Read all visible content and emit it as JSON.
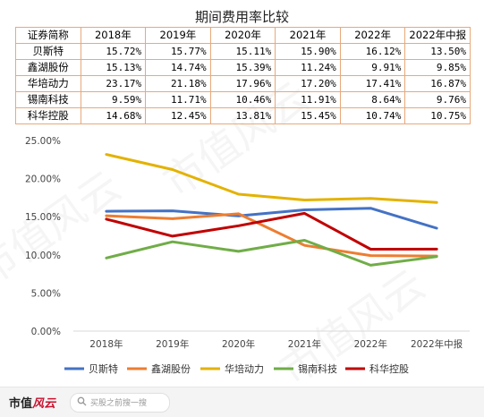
{
  "chart_data": {
    "type": "table_and_line",
    "title": "期间费用率比较",
    "table": {
      "headers": [
        "证券简称",
        "2018年",
        "2019年",
        "2020年",
        "2021年",
        "2022年",
        "2022年中报"
      ],
      "rows": [
        [
          "贝斯特",
          "15.72%",
          "15.77%",
          "15.11%",
          "15.90%",
          "16.12%",
          "13.50%"
        ],
        [
          "鑫湖股份",
          "15.13%",
          "14.74%",
          "15.39%",
          "11.24%",
          "9.91%",
          "9.85%"
        ],
        [
          "华培动力",
          "23.17%",
          "21.18%",
          "17.96%",
          "17.20%",
          "17.41%",
          "16.87%"
        ],
        [
          "锡南科技",
          "9.59%",
          "11.71%",
          "10.46%",
          "11.91%",
          "8.64%",
          "9.76%"
        ],
        [
          "科华控股",
          "14.68%",
          "12.45%",
          "13.81%",
          "15.45%",
          "10.74%",
          "10.75%"
        ]
      ]
    },
    "line_chart": {
      "type": "line",
      "categories": [
        "2018年",
        "2019年",
        "2020年",
        "2021年",
        "2022年",
        "2022年中报"
      ],
      "ylim": [
        0,
        25
      ],
      "ytick_values": [
        0,
        5,
        10,
        15,
        20,
        25
      ],
      "ytick_labels": [
        "0.00%",
        "5.00%",
        "10.00%",
        "15.00%",
        "20.00%",
        "25.00%"
      ],
      "grid": false,
      "legend_position": "bottom",
      "series": [
        {
          "name": "贝斯特",
          "color": "#4472c4",
          "values": [
            15.72,
            15.77,
            15.11,
            15.9,
            16.12,
            13.5
          ]
        },
        {
          "name": "鑫湖股份",
          "color": "#ed7d31",
          "values": [
            15.13,
            14.74,
            15.39,
            11.24,
            9.91,
            9.85
          ]
        },
        {
          "name": "华培动力",
          "color": "#e3b200",
          "values": [
            23.17,
            21.18,
            17.96,
            17.2,
            17.41,
            16.87
          ]
        },
        {
          "name": "锡南科技",
          "color": "#70ad47",
          "values": [
            9.59,
            11.71,
            10.46,
            11.91,
            8.64,
            9.76
          ]
        },
        {
          "name": "科华控股",
          "color": "#c00000",
          "values": [
            14.68,
            12.45,
            13.81,
            15.45,
            10.74,
            10.75
          ]
        }
      ]
    }
  },
  "footer": {
    "logo_main": "市值",
    "logo_accent": "风云",
    "search_placeholder": "买股之前搜一搜"
  },
  "watermark": "市值风云"
}
